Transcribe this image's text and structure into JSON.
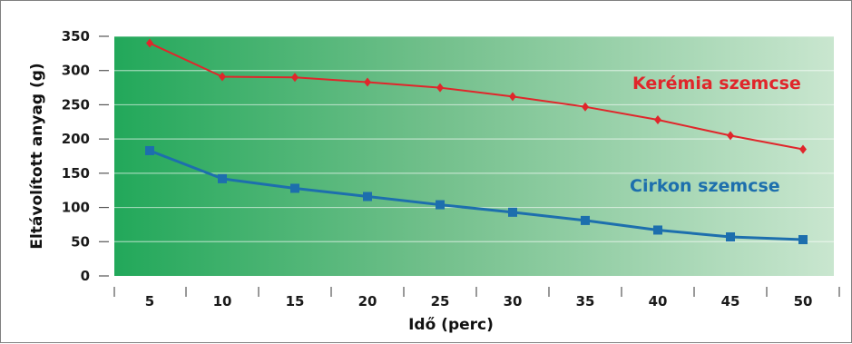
{
  "chart_data": {
    "type": "line",
    "xlabel": "Idő (perc)",
    "ylabel": "Eltávolított anyag (g)",
    "x": [
      5,
      10,
      15,
      20,
      25,
      30,
      35,
      40,
      45,
      50
    ],
    "x_ticks": [
      "5",
      "10",
      "15",
      "20",
      "25",
      "30",
      "35",
      "40",
      "45",
      "50"
    ],
    "y_ticks": [
      "0",
      "50",
      "100",
      "150",
      "200",
      "250",
      "300",
      "350"
    ],
    "ylim": [
      0,
      350
    ],
    "grid": true,
    "background": "green gradient (dark left to light right)",
    "series": [
      {
        "name": "Kerémia szemcse",
        "color": "#e0262b",
        "marker": "diamond",
        "values": [
          340,
          291,
          290,
          283,
          275,
          262,
          247,
          228,
          205,
          185
        ]
      },
      {
        "name": "Cirkon szemcse",
        "color": "#1d6fad",
        "marker": "square",
        "values": [
          183,
          142,
          128,
          116,
          104,
          93,
          81,
          67,
          57,
          53
        ]
      }
    ]
  }
}
